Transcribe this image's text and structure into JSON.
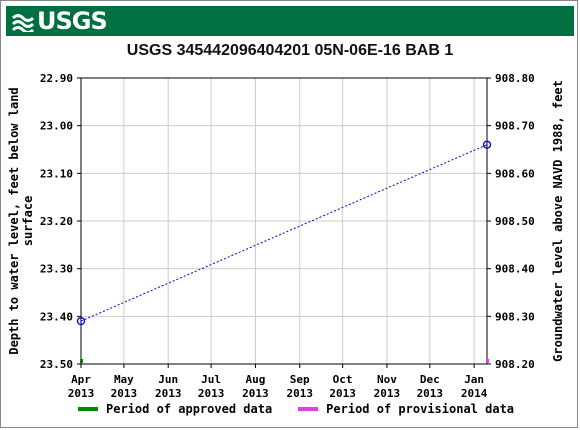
{
  "header": {
    "logo_text": "USGS"
  },
  "colors": {
    "header_bg": "#006f41",
    "series": "#0000cc",
    "approved": "#008800",
    "provisional": "#e040e0",
    "grid": "#cccccc"
  },
  "legend": {
    "approved_label": "Period of approved data",
    "provisional_label": "Period of provisional data"
  },
  "chart_data": {
    "type": "line",
    "title": "USGS 345442096404201 05N-06E-16 BAB 1",
    "ylabel_left": "Depth to water level, feet below land surface",
    "ylabel_right": "Groundwater level above NAVD 1988, feet",
    "ylim_left": [
      22.9,
      23.5
    ],
    "ylim_right": [
      908.2,
      908.8
    ],
    "y_inverted_left": true,
    "left_ticks": [
      "22.90",
      "23.00",
      "23.10",
      "23.20",
      "23.30",
      "23.40",
      "23.50"
    ],
    "right_ticks": [
      "908.80",
      "908.70",
      "908.60",
      "908.50",
      "908.40",
      "908.30",
      "908.20"
    ],
    "x_ticks": [
      {
        "month": "Apr",
        "year": "2013"
      },
      {
        "month": "May",
        "year": "2013"
      },
      {
        "month": "Jun",
        "year": "2013"
      },
      {
        "month": "Jul",
        "year": "2013"
      },
      {
        "month": "Aug",
        "year": "2013"
      },
      {
        "month": "Sep",
        "year": "2013"
      },
      {
        "month": "Oct",
        "year": "2013"
      },
      {
        "month": "Nov",
        "year": "2013"
      },
      {
        "month": "Dec",
        "year": "2013"
      },
      {
        "month": "Jan",
        "year": "2014"
      }
    ],
    "xlim": [
      "2013-04-01",
      "2014-01-10"
    ],
    "grid": true,
    "series": [
      {
        "points": [
          {
            "x": "2013-04-01",
            "y": 23.41
          },
          {
            "x": "2014-01-10",
            "y": 23.04
          }
        ]
      }
    ],
    "approved_period": [
      "2013-04-01",
      "2013-04-01"
    ],
    "provisional_period": [
      "2014-01-10",
      "2014-01-10"
    ]
  }
}
